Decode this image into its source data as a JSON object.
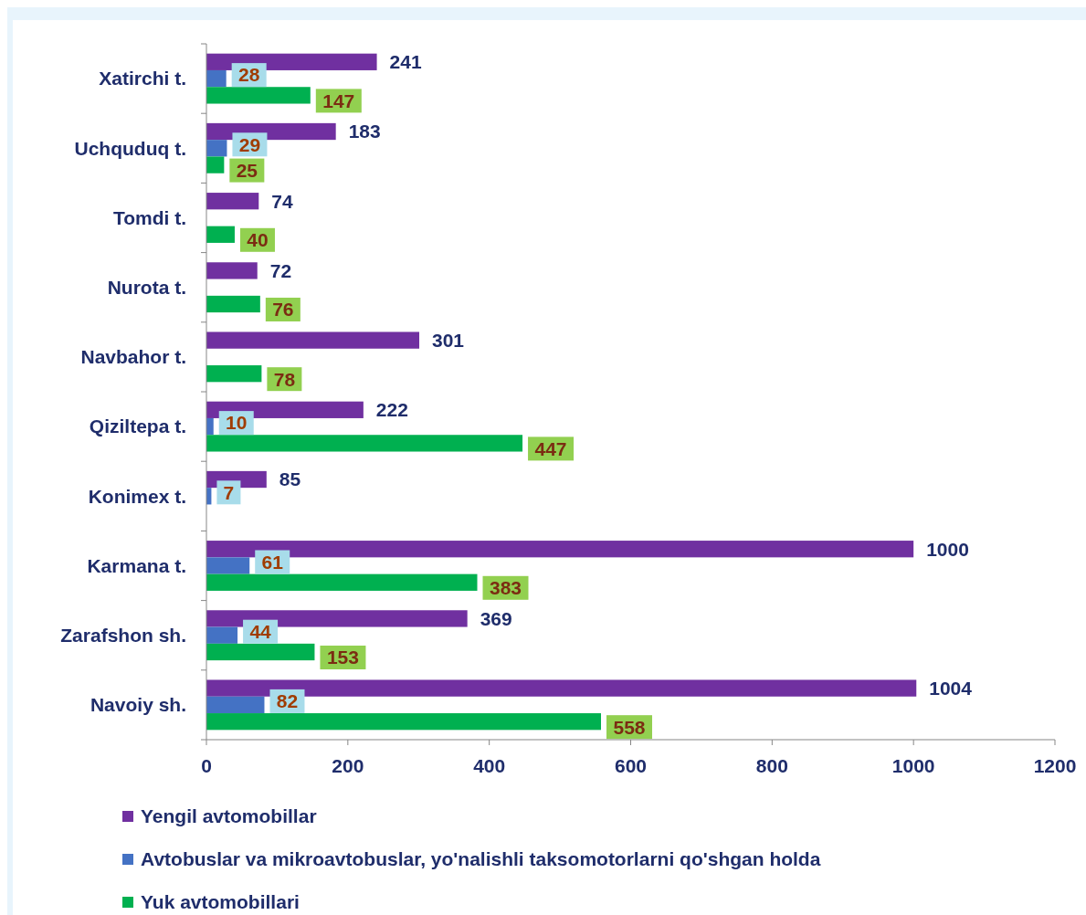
{
  "chart_data": {
    "type": "bar",
    "orientation": "horizontal",
    "categories": [
      "Xatirchi t.",
      "Uchquduq t.",
      "Tomdi t.",
      "Nurota t.",
      "Navbahor t.",
      "Qiziltepa t.",
      "Konimex t.",
      "Karmana t.",
      "Zarafshon sh.",
      "Navoiy sh."
    ],
    "series": [
      {
        "name": "Yengil avtomobillar",
        "color": "#7030a0",
        "values": [
          241,
          183,
          74,
          72,
          301,
          222,
          85,
          1000,
          369,
          1004
        ]
      },
      {
        "name": "Avtobuslar va mikroavtobuslar, yo'nalishli taksomotorlarni qo'shgan holda",
        "color": "#4472c4",
        "values": [
          28,
          29,
          null,
          null,
          null,
          10,
          7,
          61,
          44,
          82
        ]
      },
      {
        "name": "Yuk avtomobillari",
        "color": "#00b050",
        "values": [
          147,
          25,
          40,
          76,
          78,
          447,
          null,
          383,
          153,
          558
        ]
      }
    ],
    "xlim": [
      0,
      1200
    ],
    "xticks": [
      0,
      200,
      400,
      600,
      800,
      1000,
      1200
    ],
    "data_labels": true,
    "legend": "bottom",
    "grid": false
  }
}
